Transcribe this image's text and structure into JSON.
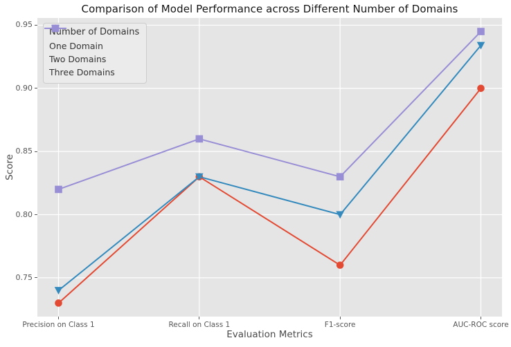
{
  "chart_data": {
    "type": "line",
    "title": "Comparison of Model Performance across Different Number of Domains",
    "xlabel": "Evaluation Metrics",
    "ylabel": "Score",
    "categories": [
      "Precision on Class 1",
      "Recall on Class 1",
      "F1-score",
      "AUC-ROC score"
    ],
    "series": [
      {
        "name": "One Domain",
        "color": "#E24A33",
        "marker": "circle",
        "values": [
          0.73,
          0.83,
          0.76,
          0.9
        ]
      },
      {
        "name": "Two Domains",
        "color": "#348ABD",
        "marker": "triangle-down",
        "values": [
          0.74,
          0.83,
          0.8,
          0.934
        ]
      },
      {
        "name": "Three Domains",
        "color": "#988ED5",
        "marker": "square",
        "values": [
          0.82,
          0.86,
          0.83,
          0.945
        ]
      }
    ],
    "legend": {
      "title": "Number of Domains",
      "position": "upper-left"
    },
    "ylim": [
      0.7193,
      0.9557
    ],
    "yticks": [
      {
        "value": 0.75,
        "label": "0.75"
      },
      {
        "value": 0.8,
        "label": "0.80"
      },
      {
        "value": 0.85,
        "label": "0.85"
      },
      {
        "value": 0.9,
        "label": "0.90"
      },
      {
        "value": 0.95,
        "label": "0.95"
      }
    ],
    "grid": true,
    "style": {
      "plot_bg": "#E5E5E5",
      "grid_color": "#FFFFFF",
      "tick_label_color": "#555555",
      "title_color": "#141414",
      "axis_label_color": "#4a4a4a",
      "legend_bg": "#EBEBEB",
      "legend_border": "#CCCCCC",
      "legend_text_color": "#333333"
    }
  }
}
